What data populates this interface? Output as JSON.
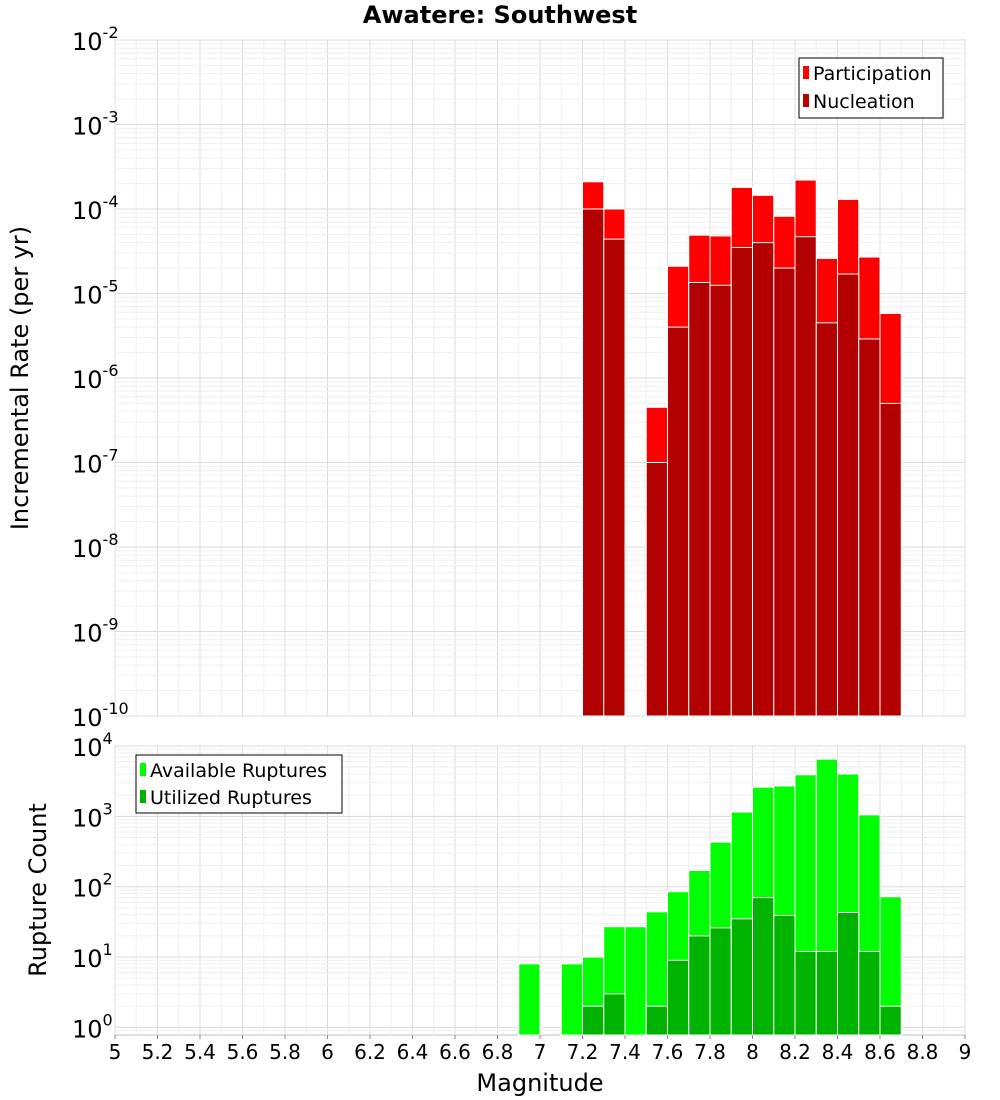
{
  "chart_data": [
    {
      "type": "bar",
      "title": "Awatere: Southwest",
      "xlabel": "",
      "ylabel": "Incremental Rate (per yr)",
      "y_scale": "log",
      "xlim": [
        5,
        9
      ],
      "ylim": [
        1e-10,
        0.01
      ],
      "y_ticks": [
        {
          "base": "10",
          "exp": "-2",
          "value": 0.01
        },
        {
          "base": "10",
          "exp": "-3",
          "value": 0.001
        },
        {
          "base": "10",
          "exp": "-4",
          "value": 0.0001
        },
        {
          "base": "10",
          "exp": "-5",
          "value": 1e-05
        },
        {
          "base": "10",
          "exp": "-6",
          "value": 1e-06
        },
        {
          "base": "10",
          "exp": "-7",
          "value": 1e-07
        },
        {
          "base": "10",
          "exp": "-8",
          "value": 1e-08
        },
        {
          "base": "10",
          "exp": "-9",
          "value": 1e-09
        },
        {
          "base": "10",
          "exp": "-10",
          "value": 1e-10
        }
      ],
      "legend": {
        "position": "top-right"
      },
      "series": [
        {
          "name": "Participation",
          "color": "#ff0000",
          "points": [
            {
              "x": 7.25,
              "y": 0.00021
            },
            {
              "x": 7.35,
              "y": 0.0001
            },
            {
              "x": 7.55,
              "y": 4.5e-07
            },
            {
              "x": 7.65,
              "y": 2.1e-05
            },
            {
              "x": 7.75,
              "y": 4.9e-05
            },
            {
              "x": 7.85,
              "y": 4.8e-05
            },
            {
              "x": 7.95,
              "y": 0.00018
            },
            {
              "x": 8.05,
              "y": 0.000145
            },
            {
              "x": 8.15,
              "y": 8.2e-05
            },
            {
              "x": 8.25,
              "y": 0.00022
            },
            {
              "x": 8.35,
              "y": 2.6e-05
            },
            {
              "x": 8.45,
              "y": 0.00013
            },
            {
              "x": 8.55,
              "y": 2.7e-05
            },
            {
              "x": 8.65,
              "y": 5.8e-06
            }
          ]
        },
        {
          "name": "Nucleation",
          "color": "#b30000",
          "points": [
            {
              "x": 7.25,
              "y": 0.0001
            },
            {
              "x": 7.35,
              "y": 4.4e-05
            },
            {
              "x": 7.55,
              "y": 1e-07
            },
            {
              "x": 7.65,
              "y": 4e-06
            },
            {
              "x": 7.75,
              "y": 1.35e-05
            },
            {
              "x": 7.85,
              "y": 1.25e-05
            },
            {
              "x": 7.95,
              "y": 3.5e-05
            },
            {
              "x": 8.05,
              "y": 4e-05
            },
            {
              "x": 8.15,
              "y": 2e-05
            },
            {
              "x": 8.25,
              "y": 4.7e-05
            },
            {
              "x": 8.35,
              "y": 4.5e-06
            },
            {
              "x": 8.45,
              "y": 1.7e-05
            },
            {
              "x": 8.55,
              "y": 2.9e-06
            },
            {
              "x": 8.65,
              "y": 5e-07
            }
          ]
        }
      ]
    },
    {
      "type": "bar",
      "title": "",
      "xlabel": "Magnitude",
      "ylabel": "Rupture Count",
      "y_scale": "log",
      "xlim": [
        5,
        9
      ],
      "ylim": [
        0.78,
        10000
      ],
      "x_ticks": [
        "5",
        "5.2",
        "5.4",
        "5.6",
        "5.8",
        "6",
        "6.2",
        "6.4",
        "6.6",
        "6.8",
        "7",
        "7.2",
        "7.4",
        "7.6",
        "7.8",
        "8",
        "8.2",
        "8.4",
        "8.6",
        "8.8",
        "9"
      ],
      "y_ticks": [
        {
          "base": "10",
          "exp": "4",
          "value": 10000
        },
        {
          "base": "10",
          "exp": "3",
          "value": 1000
        },
        {
          "base": "10",
          "exp": "2",
          "value": 100
        },
        {
          "base": "10",
          "exp": "1",
          "value": 10
        },
        {
          "base": "10",
          "exp": "0",
          "value": 1
        }
      ],
      "legend": {
        "position": "top-left"
      },
      "series": [
        {
          "name": "Available Ruptures",
          "color": "#00ff00",
          "points": [
            {
              "x": 6.95,
              "y": 8
            },
            {
              "x": 7.15,
              "y": 8
            },
            {
              "x": 7.25,
              "y": 10
            },
            {
              "x": 7.35,
              "y": 27
            },
            {
              "x": 7.45,
              "y": 27
            },
            {
              "x": 7.55,
              "y": 44
            },
            {
              "x": 7.65,
              "y": 85
            },
            {
              "x": 7.75,
              "y": 170
            },
            {
              "x": 7.85,
              "y": 430
            },
            {
              "x": 7.95,
              "y": 1150
            },
            {
              "x": 8.05,
              "y": 2600
            },
            {
              "x": 8.15,
              "y": 2700
            },
            {
              "x": 8.25,
              "y": 3900
            },
            {
              "x": 8.35,
              "y": 6500
            },
            {
              "x": 8.45,
              "y": 4000
            },
            {
              "x": 8.55,
              "y": 1050
            },
            {
              "x": 8.65,
              "y": 72
            }
          ]
        },
        {
          "name": "Utilized Ruptures",
          "color": "#00b300",
          "points": [
            {
              "x": 7.25,
              "y": 2
            },
            {
              "x": 7.35,
              "y": 3
            },
            {
              "x": 7.55,
              "y": 2
            },
            {
              "x": 7.65,
              "y": 9
            },
            {
              "x": 7.75,
              "y": 20
            },
            {
              "x": 7.85,
              "y": 26
            },
            {
              "x": 7.95,
              "y": 35
            },
            {
              "x": 8.05,
              "y": 70
            },
            {
              "x": 8.15,
              "y": 39
            },
            {
              "x": 8.25,
              "y": 12
            },
            {
              "x": 8.35,
              "y": 12
            },
            {
              "x": 8.45,
              "y": 43
            },
            {
              "x": 8.55,
              "y": 12
            },
            {
              "x": 8.65,
              "y": 2
            }
          ]
        }
      ]
    }
  ]
}
